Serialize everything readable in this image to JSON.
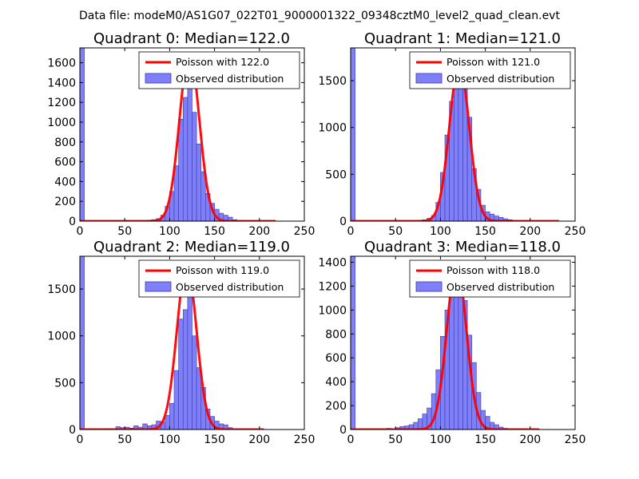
{
  "figure": {
    "suptitle": "Data file: modeM0/AS1G07_022T01_9000001322_09348cztM0_level2_quad_clean.evt",
    "colors": {
      "bar_fill": "#7f7ff8",
      "bar_edge": "#3a3ab0",
      "poisson_line": "#ff0000",
      "axis": "#000000"
    }
  },
  "chart_data": [
    {
      "type": "bar",
      "title": "Quadrant 0: Median=122.0",
      "xlim": [
        0,
        250
      ],
      "ylim": [
        0,
        1750
      ],
      "xticks": [
        "0",
        "50",
        "100",
        "150",
        "200",
        "250"
      ],
      "yticks": [
        "0",
        "200",
        "400",
        "600",
        "800",
        "1000",
        "1200",
        "1400",
        "1600"
      ],
      "legend": {
        "line": "Poisson with 122.0",
        "bars": "Observed distribution",
        "placement": "top-right"
      },
      "bin_width": 5,
      "bin_starts": [
        0,
        70,
        75,
        80,
        85,
        90,
        95,
        100,
        105,
        110,
        115,
        120,
        125,
        130,
        135,
        140,
        145,
        150,
        155,
        160,
        165,
        170,
        175,
        180
      ],
      "values": [
        1750,
        5,
        10,
        15,
        25,
        60,
        150,
        300,
        560,
        1030,
        1250,
        1420,
        1100,
        780,
        500,
        280,
        180,
        120,
        80,
        60,
        40,
        15,
        5,
        2
      ],
      "poisson_mean": 122.0,
      "poisson_peak": 1700,
      "poisson_range": [
        0,
        218
      ]
    },
    {
      "type": "bar",
      "title": "Quadrant 1: Median=121.0",
      "xlim": [
        0,
        250
      ],
      "ylim": [
        0,
        1850
      ],
      "xticks": [
        "0",
        "50",
        "100",
        "150",
        "200",
        "250"
      ],
      "yticks": [
        "0",
        "500",
        "1000",
        "1500"
      ],
      "legend": {
        "line": "Poisson with 121.0",
        "bars": "Observed distribution",
        "placement": "top-right"
      },
      "bin_width": 5,
      "bin_starts": [
        0,
        75,
        80,
        85,
        90,
        95,
        100,
        105,
        110,
        115,
        120,
        125,
        130,
        135,
        140,
        145,
        150,
        155,
        160,
        165,
        170,
        175,
        180,
        185
      ],
      "values": [
        1850,
        5,
        15,
        30,
        60,
        200,
        520,
        920,
        1280,
        1530,
        1650,
        1480,
        1110,
        560,
        340,
        170,
        100,
        75,
        55,
        40,
        25,
        15,
        5,
        2
      ],
      "poisson_mean": 121.0,
      "poisson_peak": 1680,
      "poisson_range": [
        0,
        232
      ]
    },
    {
      "type": "bar",
      "title": "Quadrant 2: Median=119.0",
      "xlim": [
        0,
        250
      ],
      "ylim": [
        0,
        1850
      ],
      "xticks": [
        "0",
        "50",
        "100",
        "150",
        "200",
        "250"
      ],
      "yticks": [
        "0",
        "500",
        "1000",
        "1500"
      ],
      "legend": {
        "line": "Poisson with 119.0",
        "bars": "Observed distribution",
        "placement": "top-right"
      },
      "bin_width": 5,
      "bin_starts": [
        0,
        20,
        30,
        40,
        45,
        50,
        55,
        60,
        65,
        70,
        75,
        80,
        85,
        90,
        95,
        100,
        105,
        110,
        115,
        120,
        125,
        130,
        135,
        140,
        145,
        150,
        155,
        160,
        165,
        170,
        175
      ],
      "values": [
        1850,
        5,
        10,
        30,
        20,
        25,
        15,
        40,
        25,
        60,
        40,
        50,
        90,
        80,
        150,
        280,
        630,
        1180,
        1280,
        1440,
        1000,
        660,
        450,
        220,
        140,
        90,
        60,
        50,
        20,
        10,
        5
      ],
      "poisson_mean": 119.0,
      "poisson_peak": 1760,
      "poisson_range": [
        0,
        205
      ]
    },
    {
      "type": "bar",
      "title": "Quadrant 3: Median=118.0",
      "xlim": [
        0,
        250
      ],
      "ylim": [
        0,
        1450
      ],
      "xticks": [
        "0",
        "50",
        "100",
        "150",
        "200",
        "250"
      ],
      "yticks": [
        "0",
        "200",
        "400",
        "600",
        "800",
        "1000",
        "1200",
        "1400"
      ],
      "legend": {
        "line": "Poisson with 118.0",
        "bars": "Observed distribution",
        "placement": "top-right"
      },
      "bin_width": 5,
      "bin_starts": [
        0,
        30,
        40,
        50,
        55,
        60,
        65,
        70,
        75,
        80,
        85,
        90,
        95,
        100,
        105,
        110,
        115,
        120,
        125,
        130,
        135,
        140,
        145,
        150,
        155,
        160,
        165,
        170
      ],
      "values": [
        1450,
        5,
        10,
        15,
        25,
        30,
        40,
        60,
        90,
        130,
        180,
        300,
        500,
        780,
        1000,
        1250,
        1400,
        1290,
        1080,
        790,
        560,
        310,
        160,
        110,
        60,
        40,
        20,
        10
      ],
      "poisson_mean": 118.0,
      "poisson_peak": 1390,
      "poisson_range": [
        0,
        210
      ]
    }
  ]
}
